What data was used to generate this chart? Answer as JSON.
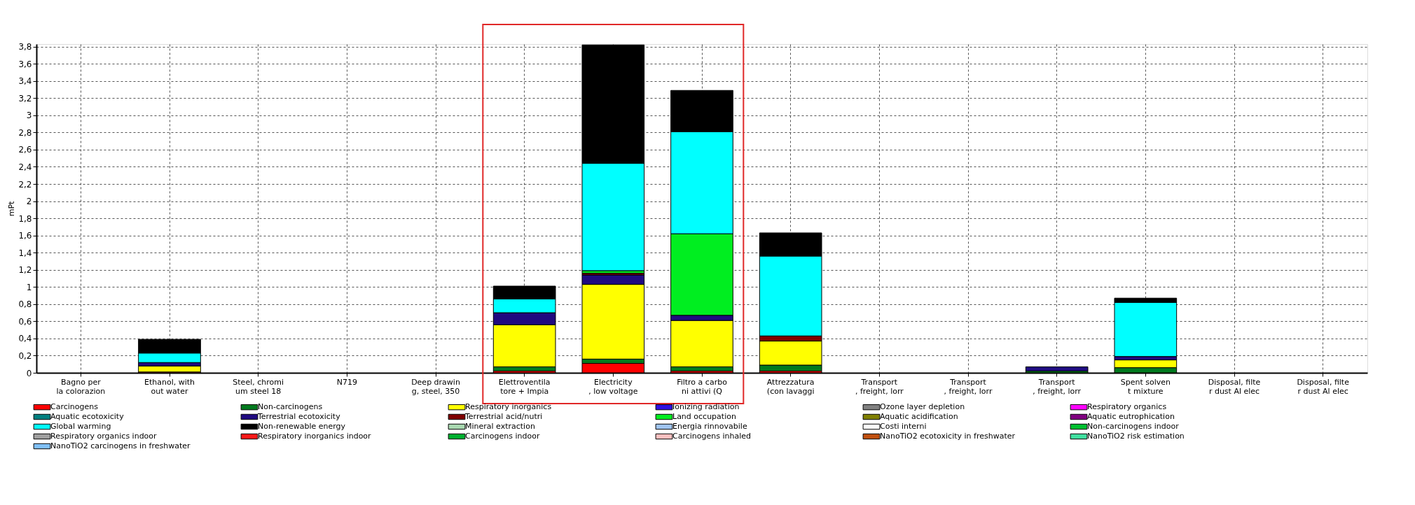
{
  "chart_data": {
    "type": "bar",
    "stacked": true,
    "ylabel": "mPt",
    "categories": [
      "Bagno per\nla colorazion",
      "Ethanol, with\nout water",
      "Steel, chromi\num steel 18",
      "N719",
      "Deep drawin\ng, steel, 350",
      "Elettroventila\ntore + Impia",
      "Electricity\n, low voltage",
      "Filtro a carbo\nni attivi (Q",
      "Attrezzatura\n(con lavaggi",
      "Transport\n, freight, lorr",
      "Transport\n, freight, lorr",
      "Transport\n, freight, lorr",
      "Spent solven\nt mixture",
      "Disposal, filte\nr dust Al elec",
      "Disposal, filte\nr dust Al elec"
    ],
    "ylim": [
      0,
      3.83
    ],
    "yticks": [
      0,
      {
        "value": 0.2,
        "label": "0,2"
      },
      {
        "value": 0.4,
        "label": "0,4"
      },
      {
        "value": 0.6,
        "label": "0,6"
      },
      {
        "value": 0.8,
        "label": "0,8"
      },
      1,
      {
        "value": 1.2,
        "label": "1,2"
      },
      {
        "value": 1.4,
        "label": "1,4"
      },
      {
        "value": 1.6,
        "label": "1,6"
      },
      {
        "value": 1.8,
        "label": "1,8"
      },
      2,
      {
        "value": 2.2,
        "label": "2,2"
      },
      {
        "value": 2.4,
        "label": "2,4"
      },
      {
        "value": 2.6,
        "label": "2,6"
      },
      {
        "value": 2.8,
        "label": "2,8"
      },
      3,
      {
        "value": 3.2,
        "label": "3,2"
      },
      {
        "value": 3.4,
        "label": "3,4"
      },
      {
        "value": 3.6,
        "label": "3,6"
      },
      {
        "value": 3.8,
        "label": "3,8"
      }
    ],
    "grid": true,
    "legend": "bottom",
    "series": [
      {
        "name": "Carcinogens",
        "color": "#ff0000",
        "values": [
          null,
          0.01,
          null,
          null,
          null,
          0.02,
          0.11,
          0.02,
          0.02,
          null,
          null,
          null,
          null,
          null,
          null
        ]
      },
      {
        "name": "Non-carcinogens",
        "color": "#007a1e",
        "values": [
          null,
          null,
          null,
          null,
          null,
          0.05,
          0.05,
          0.05,
          0.07,
          null,
          null,
          0.02,
          0.06,
          null,
          null
        ]
      },
      {
        "name": "Respiratory inorganics",
        "color": "#ffff00",
        "values": [
          null,
          0.07,
          null,
          null,
          null,
          0.49,
          0.87,
          0.54,
          0.28,
          null,
          null,
          null,
          0.09,
          null,
          null
        ]
      },
      {
        "name": "Ionizing radiation",
        "color": "#3010e0",
        "values": [
          null,
          null,
          null,
          null,
          null,
          null,
          null,
          null,
          null,
          null,
          null,
          null,
          null,
          null,
          null
        ]
      },
      {
        "name": "Ozone layer depletion",
        "color": "#808080",
        "values": [
          null,
          null,
          null,
          null,
          null,
          null,
          null,
          null,
          null,
          null,
          null,
          null,
          null,
          null,
          null
        ]
      },
      {
        "name": "Respiratory organics",
        "color": "#ff00ff",
        "values": [
          null,
          null,
          null,
          null,
          null,
          null,
          null,
          null,
          null,
          null,
          null,
          null,
          null,
          null,
          null
        ]
      },
      {
        "name": "Aquatic ecotoxicity",
        "color": "#008080",
        "values": [
          null,
          null,
          null,
          null,
          null,
          null,
          null,
          null,
          null,
          null,
          null,
          null,
          null,
          null,
          null
        ]
      },
      {
        "name": "Terrestrial ecotoxicity",
        "color": "#200a80",
        "values": [
          null,
          0.04,
          null,
          null,
          null,
          0.14,
          0.11,
          0.06,
          null,
          null,
          null,
          0.05,
          0.04,
          null,
          null
        ]
      },
      {
        "name": "Terrestrial acid/nutri",
        "color": "#800000",
        "values": [
          null,
          null,
          null,
          null,
          null,
          null,
          0.02,
          null,
          0.06,
          null,
          null,
          null,
          null,
          null,
          null
        ]
      },
      {
        "name": "Land occupation",
        "color": "#00ee20",
        "values": [
          null,
          null,
          null,
          null,
          null,
          null,
          0.03,
          0.95,
          null,
          null,
          null,
          null,
          null,
          null,
          null
        ]
      },
      {
        "name": "Aquatic acidification",
        "color": "#808000",
        "values": [
          null,
          null,
          null,
          null,
          null,
          null,
          null,
          null,
          null,
          null,
          null,
          null,
          null,
          null,
          null
        ]
      },
      {
        "name": "Aquatic eutrophication",
        "color": "#800080",
        "values": [
          null,
          null,
          null,
          null,
          null,
          null,
          null,
          null,
          null,
          null,
          null,
          null,
          null,
          null,
          null
        ]
      },
      {
        "name": "Global warming",
        "color": "#00ffff",
        "values": [
          null,
          0.11,
          null,
          null,
          null,
          0.16,
          1.25,
          1.19,
          0.93,
          null,
          null,
          null,
          0.63,
          null,
          null
        ]
      },
      {
        "name": "Non-renewable energy",
        "color": "#000000",
        "values": [
          null,
          0.16,
          null,
          null,
          null,
          0.15,
          1.38,
          0.48,
          0.27,
          null,
          null,
          null,
          0.05,
          null,
          null
        ]
      },
      {
        "name": "Mineral extraction",
        "color": "#a8d8b0",
        "values": [
          null,
          null,
          null,
          null,
          null,
          null,
          null,
          null,
          null,
          null,
          null,
          null,
          null,
          null,
          null
        ]
      },
      {
        "name": "Energia rinnovabile",
        "color": "#a0c4f0",
        "values": [
          null,
          null,
          null,
          null,
          null,
          null,
          null,
          null,
          null,
          null,
          null,
          null,
          null,
          null,
          null
        ]
      },
      {
        "name": "Costi interni",
        "color": "#ffffff",
        "values": [
          null,
          null,
          null,
          null,
          null,
          null,
          null,
          null,
          null,
          null,
          null,
          null,
          null,
          null,
          null
        ]
      },
      {
        "name": "Non-carcinogens indoor",
        "color": "#00c030",
        "values": [
          null,
          null,
          null,
          null,
          null,
          null,
          null,
          null,
          null,
          null,
          null,
          null,
          null,
          null,
          null
        ]
      },
      {
        "name": "Respiratory organics indoor",
        "color": "#a0a0a0",
        "values": [
          null,
          null,
          null,
          null,
          null,
          null,
          null,
          null,
          null,
          null,
          null,
          null,
          null,
          null,
          null
        ]
      },
      {
        "name": "Respiratory inorganics indoor",
        "color": "#ff1818",
        "values": [
          null,
          null,
          null,
          null,
          null,
          null,
          null,
          null,
          null,
          null,
          null,
          null,
          null,
          null,
          null
        ]
      },
      {
        "name": "Carcinogens indoor",
        "color": "#00b030",
        "values": [
          null,
          null,
          null,
          null,
          null,
          null,
          null,
          null,
          null,
          null,
          null,
          null,
          null,
          null,
          null
        ]
      },
      {
        "name": "Carcinogens inhaled",
        "color": "#ffc0c0",
        "values": [
          null,
          null,
          null,
          null,
          null,
          null,
          null,
          null,
          null,
          null,
          null,
          null,
          null,
          null,
          null
        ]
      },
      {
        "name": "NanoTiO2 ecotoxicity in freshwater",
        "color": "#c05010",
        "values": [
          null,
          null,
          null,
          null,
          null,
          null,
          null,
          null,
          null,
          null,
          null,
          null,
          null,
          null,
          null
        ]
      },
      {
        "name": "NanoTiO2 risk estimation",
        "color": "#40e0a0",
        "values": [
          null,
          null,
          null,
          null,
          null,
          null,
          null,
          null,
          null,
          null,
          null,
          null,
          null,
          null,
          null
        ]
      },
      {
        "name": "NanoTiO2 carcinogens in freshwater",
        "color": "#80c0f8",
        "values": [
          null,
          null,
          null,
          null,
          null,
          null,
          null,
          null,
          null,
          null,
          null,
          null,
          null,
          null,
          null
        ]
      }
    ]
  }
}
